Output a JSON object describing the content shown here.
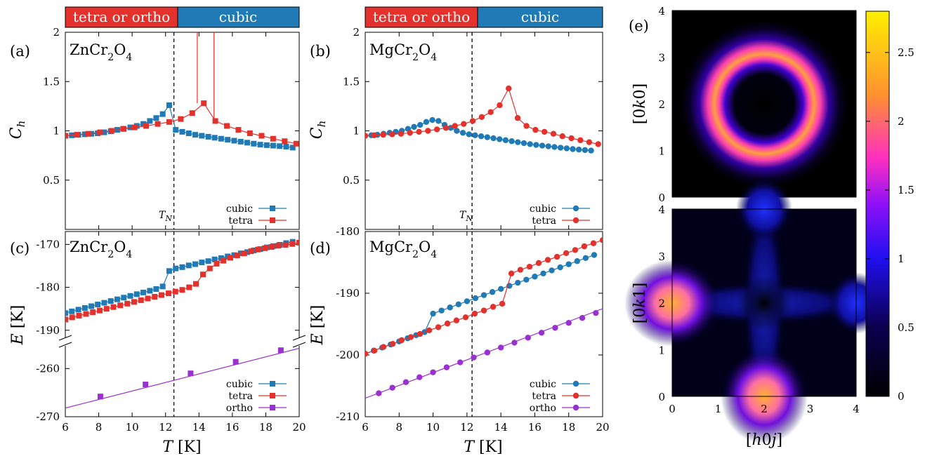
{
  "phase_band": {
    "left_label": "tetra or ortho",
    "right_label": "cubic",
    "left_color": "#e4312b",
    "right_color": "#1f7ab5"
  },
  "colors": {
    "cubic": "#1f7ab5",
    "tetra": "#e4312b",
    "ortho": "#9b30d0"
  },
  "labels": {
    "T_axis": "T [K]",
    "Ch_axis": "C_h",
    "E_axis": "E [K]",
    "TN": "T_N",
    "hk0": "[0k0]",
    "hk1": "[0k1]",
    "h0j": "[h0j]"
  },
  "panels": {
    "a": {
      "tag": "(a)",
      "compound": "ZnCr2O4"
    },
    "b": {
      "tag": "(b)",
      "compound": "MgCr2O4"
    },
    "c": {
      "tag": "(c)",
      "compound": "ZnCr2O4"
    },
    "d": {
      "tag": "(d)",
      "compound": "MgCr2O4"
    },
    "e": {
      "tag": "(e)"
    }
  },
  "chart_data": [
    {
      "panel": "a",
      "type": "line",
      "xlim": [
        6,
        20
      ],
      "ylim": [
        0,
        2
      ],
      "xticks": [
        6,
        8,
        10,
        12,
        14,
        16,
        18,
        20
      ],
      "yticks": [
        0.5,
        1,
        1.5,
        2
      ],
      "TN": 12.5,
      "legend": "bottom-right",
      "series": [
        {
          "name": "cubic",
          "marker": "square",
          "x": [
            6.0,
            6.39,
            6.78,
            7.17,
            7.56,
            7.94,
            8.33,
            8.72,
            9.11,
            9.5,
            9.89,
            10.28,
            10.67,
            11.06,
            11.44,
            11.83,
            12.22,
            12.61,
            13.0,
            13.39,
            13.78,
            14.17,
            14.56,
            14.94,
            15.33,
            15.72,
            16.11,
            16.5,
            16.89,
            17.28,
            17.67,
            18.06,
            18.44,
            18.83,
            19.22,
            19.61
          ],
          "y": [
            0.95,
            0.955,
            0.96,
            0.965,
            0.97,
            0.975,
            0.985,
            0.995,
            1.01,
            1.02,
            1.035,
            1.05,
            1.07,
            1.1,
            1.13,
            1.17,
            1.26,
            1.01,
            0.99,
            0.975,
            0.96,
            0.95,
            0.94,
            0.93,
            0.92,
            0.91,
            0.9,
            0.89,
            0.88,
            0.87,
            0.86,
            0.855,
            0.85,
            0.845,
            0.84,
            0.83
          ]
        },
        {
          "name": "tetra",
          "marker": "square",
          "x": [
            6.0,
            6.69,
            7.38,
            8.07,
            8.77,
            9.46,
            10.15,
            10.84,
            11.53,
            12.22,
            12.91,
            13.6,
            14.29,
            14.98,
            15.67,
            16.36,
            17.05,
            17.75,
            18.44,
            19.13,
            19.82
          ],
          "y": [
            0.95,
            0.96,
            0.97,
            0.985,
            1.0,
            1.02,
            1.035,
            1.05,
            1.07,
            1.09,
            1.12,
            1.18,
            1.28,
            1.1,
            1.05,
            1.01,
            0.975,
            0.95,
            0.92,
            0.895,
            0.87
          ]
        },
        {
          "name": "tetra-spike-1",
          "x": [
            13.9,
            13.9
          ],
          "y": [
            1.28,
            2.2
          ]
        },
        {
          "name": "tetra-spike-2",
          "x": [
            14.9,
            14.9
          ],
          "y": [
            2.2,
            1.1
          ]
        }
      ]
    },
    {
      "panel": "b",
      "type": "line",
      "xlim": [
        6,
        20
      ],
      "ylim": [
        0,
        2
      ],
      "xticks": [
        6,
        8,
        10,
        12,
        14,
        16,
        18,
        20
      ],
      "yticks": [
        0.5,
        1,
        1.5,
        2
      ],
      "TN": 12.3,
      "legend": "bottom-right",
      "series": [
        {
          "name": "cubic",
          "marker": "circle",
          "x": [
            6.0,
            6.36,
            6.72,
            7.08,
            7.44,
            7.8,
            8.16,
            8.52,
            8.88,
            9.24,
            9.6,
            9.96,
            10.32,
            10.68,
            11.04,
            11.4,
            11.76,
            12.12,
            12.48,
            12.84,
            13.2,
            13.56,
            13.92,
            14.28,
            14.64,
            15.0,
            15.36,
            15.72,
            16.08,
            16.44,
            16.8,
            17.16,
            17.52,
            17.88,
            18.24,
            18.6,
            18.96,
            19.32
          ],
          "y": [
            0.95,
            0.955,
            0.96,
            0.97,
            0.98,
            0.99,
            1.0,
            1.02,
            1.04,
            1.06,
            1.09,
            1.11,
            1.1,
            1.06,
            1.03,
            1.0,
            0.98,
            0.965,
            0.955,
            0.945,
            0.935,
            0.925,
            0.915,
            0.905,
            0.895,
            0.885,
            0.875,
            0.865,
            0.857,
            0.85,
            0.843,
            0.836,
            0.829,
            0.822,
            0.815,
            0.81,
            0.805,
            0.8
          ]
        },
        {
          "name": "tetra",
          "marker": "circle",
          "x": [
            6.0,
            6.53,
            7.06,
            7.59,
            8.11,
            8.64,
            9.17,
            9.7,
            10.23,
            10.76,
            11.29,
            11.81,
            12.34,
            12.87,
            13.4,
            13.93,
            14.46,
            14.99,
            15.51,
            16.04,
            16.57,
            17.1,
            17.63,
            18.16,
            18.69,
            19.21,
            19.74
          ],
          "y": [
            0.95,
            0.955,
            0.96,
            0.965,
            0.97,
            0.98,
            0.99,
            1.0,
            1.015,
            1.03,
            1.05,
            1.07,
            1.1,
            1.14,
            1.19,
            1.26,
            1.43,
            1.13,
            1.05,
            1.01,
            0.99,
            0.97,
            0.945,
            0.925,
            0.905,
            0.885,
            0.865
          ]
        }
      ]
    },
    {
      "panel": "c",
      "type": "line",
      "xlim": [
        6,
        20
      ],
      "y_upper": [
        -192,
        -167
      ],
      "y_lower": [
        -270,
        -255
      ],
      "xticks": [
        6,
        8,
        10,
        12,
        14,
        16,
        18,
        20
      ],
      "yticks": [
        -170,
        -180,
        -190,
        -260,
        -270
      ],
      "TN": 12.5,
      "legend": "bottom-right",
      "series": [
        {
          "name": "cubic",
          "marker": "square",
          "x": [
            6.0,
            6.39,
            6.78,
            7.17,
            7.56,
            7.94,
            8.33,
            8.72,
            9.11,
            9.5,
            9.89,
            10.28,
            10.67,
            11.06,
            11.44,
            11.83,
            12.22,
            12.61,
            13.0,
            13.39,
            13.78,
            14.17,
            14.56,
            14.94,
            15.33,
            15.72,
            16.11,
            16.5,
            16.89,
            17.28,
            17.67,
            18.06,
            18.44,
            18.83,
            19.22,
            19.61
          ],
          "y": [
            -186.0,
            -185.6,
            -185.2,
            -184.8,
            -184.4,
            -184.0,
            -183.6,
            -183.2,
            -182.8,
            -182.4,
            -182.0,
            -181.6,
            -181.2,
            -180.8,
            -180.4,
            -179.8,
            -176.2,
            -175.6,
            -175.3,
            -174.9,
            -174.6,
            -174.2,
            -173.9,
            -173.5,
            -173.2,
            -172.8,
            -172.5,
            -172.1,
            -171.8,
            -171.4,
            -171.1,
            -170.7,
            -170.4,
            -170.1,
            -169.7,
            -169.4
          ]
        },
        {
          "name": "tetra",
          "marker": "square",
          "x": [
            6.0,
            6.41,
            6.82,
            7.24,
            7.65,
            8.06,
            8.47,
            8.88,
            9.29,
            9.71,
            10.12,
            10.53,
            10.94,
            11.35,
            11.76,
            12.18,
            12.59,
            13.0,
            13.41,
            13.82,
            14.24,
            14.65,
            15.06,
            15.47,
            15.88,
            16.29,
            16.71,
            17.12,
            17.53,
            17.94,
            18.35,
            18.76,
            19.18,
            19.59,
            20.0
          ],
          "y": [
            -187.5,
            -187.0,
            -186.6,
            -186.2,
            -185.8,
            -185.4,
            -185.0,
            -184.6,
            -184.2,
            -183.8,
            -183.4,
            -183.0,
            -182.6,
            -182.2,
            -181.8,
            -181.4,
            -181.0,
            -180.6,
            -180.0,
            -179.2,
            -177.0,
            -175.6,
            -174.5,
            -173.8,
            -173.1,
            -172.6,
            -172.1,
            -171.6,
            -171.2,
            -170.9,
            -170.6,
            -170.3,
            -170.1,
            -169.9,
            -169.6
          ]
        },
        {
          "name": "ortho",
          "marker": "square",
          "fit_line": [
            [
              6,
              -268.2
            ],
            [
              20,
              -255.8
            ]
          ],
          "x": [
            8.1,
            10.8,
            13.5,
            16.2,
            18.9
          ],
          "y": [
            -265.8,
            -263.3,
            -261.0,
            -258.6,
            -256.2
          ]
        }
      ]
    },
    {
      "panel": "d",
      "type": "line",
      "xlim": [
        6,
        20
      ],
      "ylim": [
        -210,
        -180
      ],
      "xticks": [
        6,
        8,
        10,
        12,
        14,
        16,
        18,
        20
      ],
      "yticks": [
        -180,
        -190,
        -200,
        -210
      ],
      "TN": 12.3,
      "legend": "bottom-right",
      "series": [
        {
          "name": "cubic",
          "marker": "circle",
          "x": [
            6.0,
            6.5,
            7.0,
            7.5,
            8.0,
            8.5,
            9.0,
            9.5,
            10.0,
            10.5,
            11.0,
            11.5,
            12.0,
            12.5,
            13.0,
            13.5,
            14.0,
            14.5,
            15.0,
            15.5,
            16.0,
            16.5,
            17.0,
            17.5,
            18.0,
            18.5,
            19.0,
            19.5
          ],
          "y": [
            -199.8,
            -199.3,
            -198.8,
            -198.3,
            -197.8,
            -197.3,
            -196.8,
            -196.3,
            -193.3,
            -192.8,
            -192.3,
            -191.8,
            -191.3,
            -190.8,
            -190.3,
            -189.8,
            -189.3,
            -188.8,
            -188.3,
            -187.8,
            -187.3,
            -186.8,
            -186.3,
            -185.8,
            -185.3,
            -184.8,
            -184.3,
            -183.8
          ]
        },
        {
          "name": "tetra",
          "marker": "circle",
          "x": [
            6.0,
            6.54,
            7.08,
            7.62,
            8.15,
            8.69,
            9.23,
            9.77,
            10.31,
            10.85,
            11.38,
            11.92,
            12.46,
            13.0,
            13.54,
            14.08,
            14.62,
            15.15,
            15.69,
            16.23,
            16.77,
            17.31,
            17.85,
            18.38,
            18.92,
            19.46,
            20.0
          ],
          "y": [
            -199.8,
            -199.3,
            -198.7,
            -198.2,
            -197.6,
            -197.1,
            -196.6,
            -196.0,
            -195.5,
            -194.9,
            -194.4,
            -193.9,
            -193.3,
            -192.8,
            -192.2,
            -191.7,
            -186.8,
            -186.2,
            -185.7,
            -185.1,
            -184.6,
            -184.1,
            -183.5,
            -183.0,
            -182.4,
            -181.9,
            -181.4
          ]
        },
        {
          "name": "ortho",
          "marker": "circle",
          "fit_line": [
            [
              6,
              -207.0
            ],
            [
              20,
              -192.5
            ]
          ],
          "x": [
            6.8,
            7.6,
            8.4,
            9.2,
            10.0,
            10.8,
            11.6,
            12.4,
            13.2,
            14.0,
            14.8,
            15.6,
            16.4,
            17.2,
            18.0,
            18.8,
            19.6
          ],
          "y": [
            -206.2,
            -205.3,
            -204.4,
            -203.6,
            -202.8,
            -202.0,
            -201.2,
            -200.4,
            -199.6,
            -198.8,
            -198.0,
            -197.2,
            -196.4,
            -195.6,
            -194.8,
            -194.0,
            -193.2
          ]
        }
      ]
    },
    {
      "panel": "e",
      "type": "heatmap",
      "maps": [
        {
          "name": "[0k0]",
          "xlim": [
            0,
            4
          ],
          "ylim": [
            0,
            4
          ],
          "pattern": "ring",
          "center": [
            2,
            2
          ],
          "radius": 0.95
        },
        {
          "name": "[0k1]",
          "xlim": [
            0,
            4
          ],
          "ylim": [
            0,
            4
          ],
          "pattern": "cross",
          "hotspots": [
            [
              0,
              2
            ],
            [
              2,
              0
            ]
          ]
        }
      ],
      "xticks": [
        0,
        1,
        2,
        3,
        4
      ],
      "yticks": [
        0,
        1,
        2,
        3,
        4
      ],
      "colorbar": {
        "range": [
          0,
          2.8
        ],
        "ticks": [
          0,
          0.5,
          1,
          1.5,
          2,
          2.5
        ]
      }
    }
  ]
}
